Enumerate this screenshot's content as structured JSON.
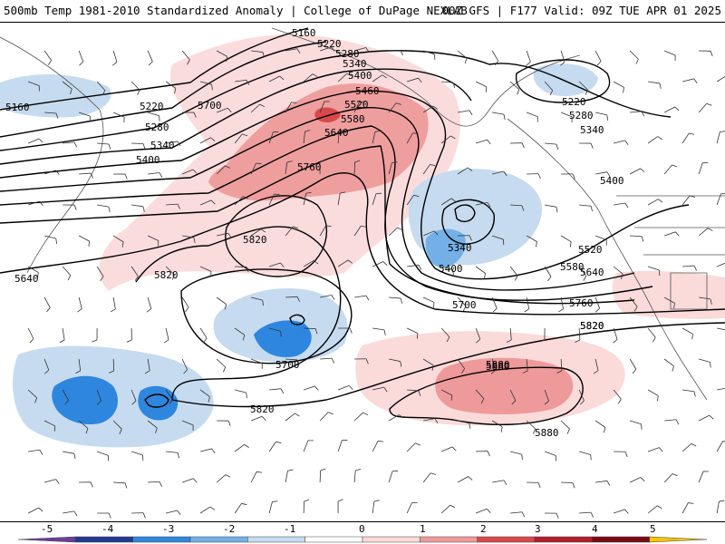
{
  "header": {
    "left_title": "500mb Temp 1981-2010 Standardized Anomaly | College of DuPage NEXLAB",
    "right_title": "00Z GFS | F177 Valid: 09Z TUE APR 01 2025"
  },
  "colors": {
    "contour": "#000000",
    "coast": "#555555",
    "scale": [
      {
        "value": -5,
        "color": "#6a3d9a"
      },
      {
        "value": -4,
        "color": "#1f3a93"
      },
      {
        "value": -3,
        "color": "#2e86de"
      },
      {
        "value": -2,
        "color": "#74b0e6"
      },
      {
        "value": -1,
        "color": "#c6dbef"
      },
      {
        "value": 0,
        "color": "#ffffff"
      },
      {
        "value": 1,
        "color": "#fbdada"
      },
      {
        "value": 2,
        "color": "#ee9a9a"
      },
      {
        "value": 3,
        "color": "#d84a4a"
      },
      {
        "value": 4,
        "color": "#b21f2b"
      },
      {
        "value": 5,
        "color": "#7a0a14"
      },
      {
        "value": 6,
        "color": "#f5c400"
      }
    ]
  },
  "contour_labels": [
    "5160",
    "5220",
    "5280",
    "5340",
    "5400",
    "5460",
    "5520",
    "5580",
    "5640",
    "5700",
    "5760",
    "5820",
    "5880",
    "5160",
    "5220",
    "5280",
    "5340",
    "5400",
    "5820",
    "5640",
    "5820",
    "5400",
    "5340",
    "5520",
    "5580",
    "5640",
    "5760",
    "5820",
    "5700",
    "5700",
    "5880",
    "5880",
    "5820",
    "5220",
    "5280",
    "5340",
    "5400"
  ],
  "colorbar": {
    "tick_labels": [
      "-5",
      "-4",
      "-3",
      "-2",
      "-1",
      "0",
      "1",
      "2",
      "3",
      "4",
      "5"
    ]
  }
}
